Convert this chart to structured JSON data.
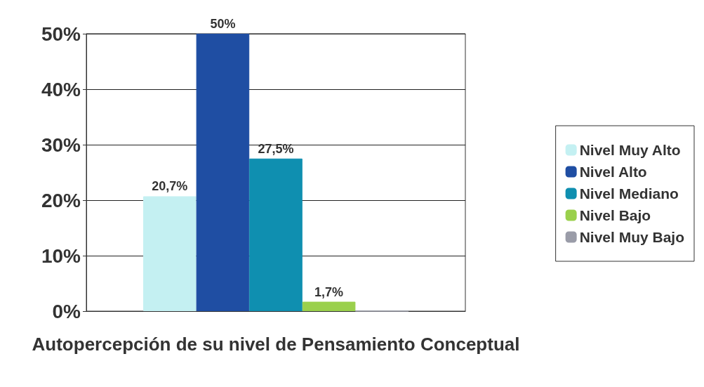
{
  "chart_data": {
    "type": "bar",
    "xlabel": "Autopercepción de su nivel de Pensamiento Conceptual",
    "categories": [
      null
    ],
    "series": [
      {
        "name": "Nivel Muy Alto",
        "color": "#c4f0f2",
        "values": [
          20.7
        ],
        "value_labels": [
          "20,7%"
        ]
      },
      {
        "name": "Nivel Alto",
        "color": "#1f4ea3",
        "values": [
          50
        ],
        "value_labels": [
          "50%"
        ]
      },
      {
        "name": "Nivel Mediano",
        "color": "#0f8fb0",
        "values": [
          27.5
        ],
        "value_labels": [
          "27,5%"
        ]
      },
      {
        "name": "Nivel Bajo",
        "color": "#9ad04c",
        "values": [
          1.7
        ],
        "value_labels": [
          "1,7%"
        ]
      },
      {
        "name": "Nivel Muy Bajo",
        "color": "#9a9ca8",
        "values": [
          0
        ],
        "value_labels": [
          null
        ]
      }
    ],
    "ylim": [
      0,
      50
    ],
    "yticks": [
      {
        "value": 0,
        "label": "0%"
      },
      {
        "value": 10,
        "label": "10%"
      },
      {
        "value": 20,
        "label": "20%"
      },
      {
        "value": 30,
        "label": "30%"
      },
      {
        "value": 40,
        "label": "40%"
      },
      {
        "value": 50,
        "label": "50%"
      }
    ],
    "grid": "y",
    "legend": "right"
  }
}
